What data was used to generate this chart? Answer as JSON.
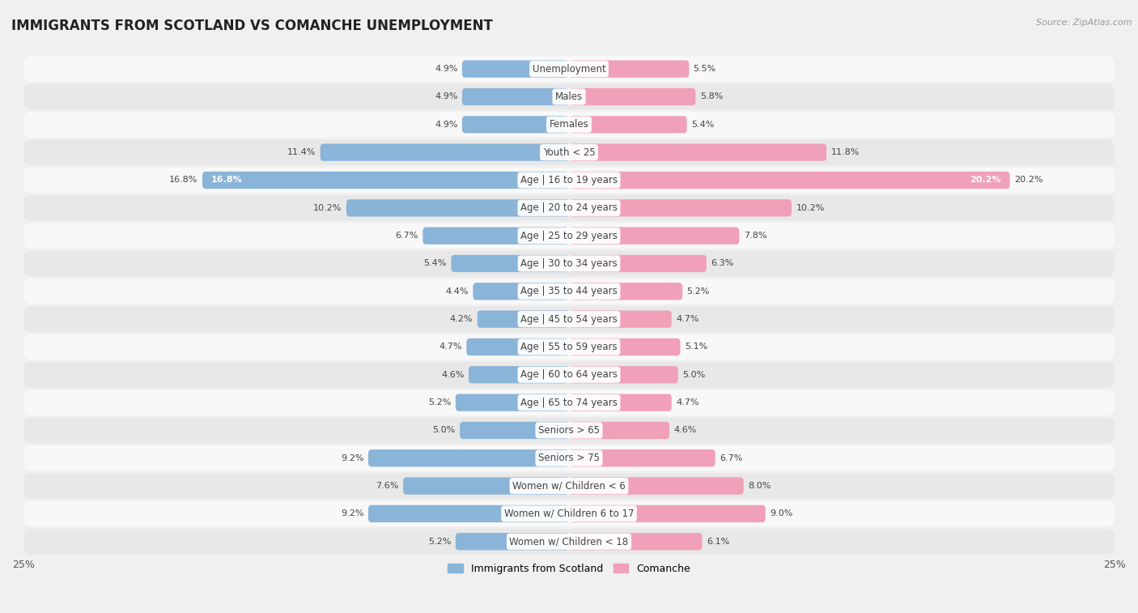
{
  "title": "IMMIGRANTS FROM SCOTLAND VS COMANCHE UNEMPLOYMENT",
  "source": "Source: ZipAtlas.com",
  "categories": [
    "Unemployment",
    "Males",
    "Females",
    "Youth < 25",
    "Age | 16 to 19 years",
    "Age | 20 to 24 years",
    "Age | 25 to 29 years",
    "Age | 30 to 34 years",
    "Age | 35 to 44 years",
    "Age | 45 to 54 years",
    "Age | 55 to 59 years",
    "Age | 60 to 64 years",
    "Age | 65 to 74 years",
    "Seniors > 65",
    "Seniors > 75",
    "Women w/ Children < 6",
    "Women w/ Children 6 to 17",
    "Women w/ Children < 18"
  ],
  "scotland_values": [
    4.9,
    4.9,
    4.9,
    11.4,
    16.8,
    10.2,
    6.7,
    5.4,
    4.4,
    4.2,
    4.7,
    4.6,
    5.2,
    5.0,
    9.2,
    7.6,
    9.2,
    5.2
  ],
  "comanche_values": [
    5.5,
    5.8,
    5.4,
    11.8,
    20.2,
    10.2,
    7.8,
    6.3,
    5.2,
    4.7,
    5.1,
    5.0,
    4.7,
    4.6,
    6.7,
    8.0,
    9.0,
    6.1
  ],
  "scotland_color": "#8ab4d8",
  "comanche_color": "#f0a0b8",
  "scotland_label_color": "#ffffff",
  "comanche_label_color": "#ffffff",
  "max_val": 25.0,
  "bar_height": 0.62,
  "background_color": "#f0f0f0",
  "row_colors": [
    "#f8f8f8",
    "#e8e8e8"
  ],
  "title_fontsize": 12,
  "label_fontsize": 8.5,
  "value_fontsize": 8.0,
  "legend_fontsize": 9
}
